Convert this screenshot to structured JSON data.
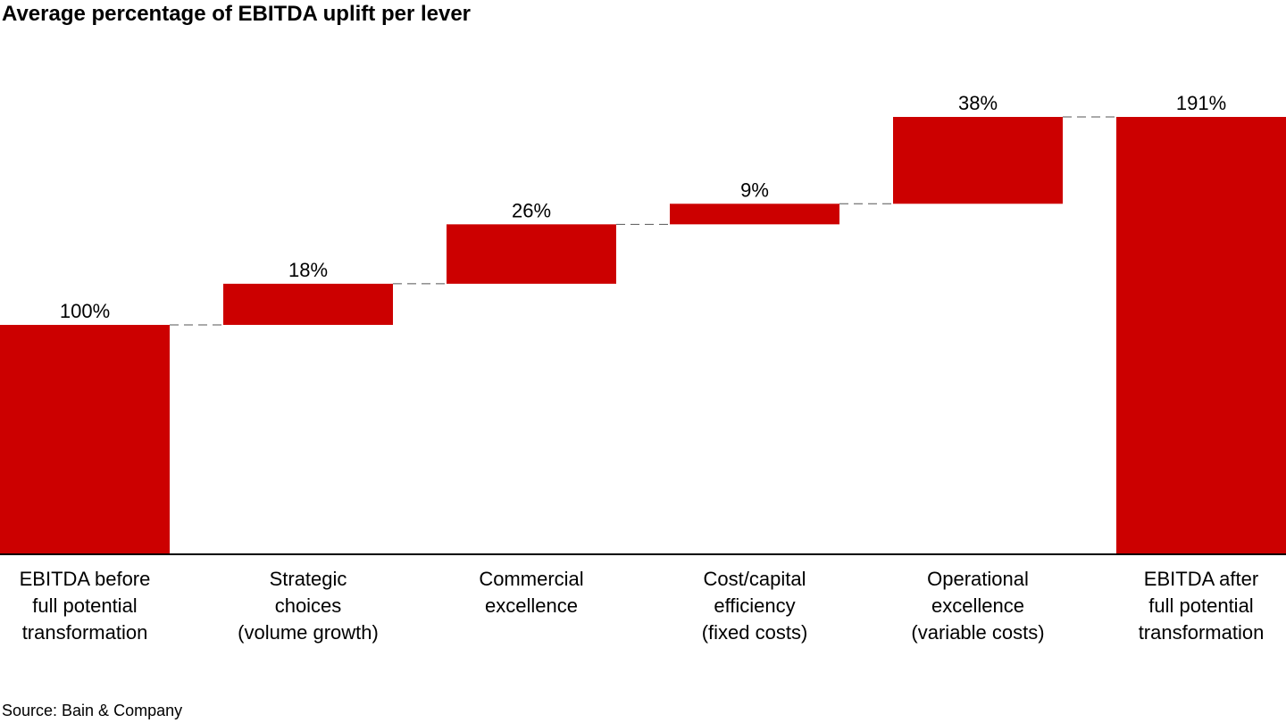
{
  "chart_data": {
    "type": "bar",
    "subtype": "waterfall",
    "title": "Average percentage of EBITDA uplift per lever",
    "categories": [
      "EBITDA before\nfull potential\ntransformation",
      "Strategic\nchoices\n(volume growth)",
      "Commercial\nexcellence",
      "Cost/capital\nefficiency\n(fixed costs)",
      "Operational\nexcellence\n(variable costs)",
      "EBITDA after\nfull potential\ntransformation"
    ],
    "values": [
      100,
      18,
      26,
      9,
      38,
      191
    ],
    "measure": [
      "total",
      "relative",
      "relative",
      "relative",
      "relative",
      "total"
    ],
    "data_labels": [
      "100%",
      "18%",
      "26%",
      "9%",
      "38%",
      "191%"
    ],
    "ylim": [
      0,
      191
    ],
    "grid": false,
    "connectors": "dashed",
    "bar_color": "#cc0000",
    "connector_color": "#555555",
    "axis_color": "#000000"
  },
  "source": "Source: Bain & Company"
}
